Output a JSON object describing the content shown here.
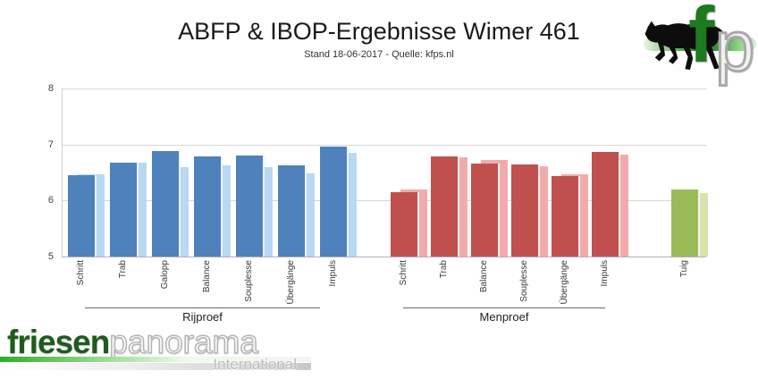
{
  "header": {
    "title": "ABFP & IBOP-Ergebnisse Wimer 461",
    "subtitle": "Stand 18-06-2017 - Quelle: kfps.nl"
  },
  "top_logo": {
    "letter_f": "f",
    "letter_p": "p"
  },
  "bottom_logo": {
    "word_green": "friesen",
    "word_silver": "panorama",
    "tagline": "International"
  },
  "chart_data": {
    "type": "bar",
    "title": "ABFP & IBOP-Ergebnisse Wimer 461",
    "subtitle": "Stand 18-06-2017 - Quelle: kfps.nl",
    "xlabel": "",
    "ylabel": "",
    "ylim": [
      5,
      8
    ],
    "yticks": [
      5,
      6,
      7,
      8
    ],
    "grid": true,
    "legend_position": "none",
    "bar_style": "each category has a front bar plus a lighter shadow bar offset to the right",
    "groups": [
      {
        "name": "Rijproef",
        "color_main": "#4f81bd",
        "color_shadow": "#b9d9f2",
        "categories": [
          "Schritt",
          "Trab",
          "Galopp",
          "Balance",
          "Souplesse",
          "Übergänge",
          "Impuls"
        ],
        "series": [
          {
            "name": "main",
            "values": [
              6.45,
              6.68,
              6.89,
              6.78,
              6.81,
              6.62,
              6.97
            ]
          },
          {
            "name": "shadow",
            "values": [
              6.47,
              6.67,
              6.59,
              6.62,
              6.6,
              6.48,
              6.85
            ]
          }
        ]
      },
      {
        "name": "Menproef",
        "color_main": "#c0504d",
        "color_shadow": "#f2abab",
        "categories": [
          "Schritt",
          "Trab",
          "Balance",
          "Souplesse",
          "Übergänge",
          "Impuls"
        ],
        "series": [
          {
            "name": "main",
            "values": [
              6.15,
              6.78,
              6.66,
              6.64,
              6.43,
              6.86
            ]
          },
          {
            "name": "shadow",
            "values": [
              6.2,
              6.77,
              6.72,
              6.61,
              6.47,
              6.82
            ]
          }
        ]
      },
      {
        "name": "",
        "color_main": "#9bbb59",
        "color_shadow": "#d7e4b0",
        "categories": [
          "Tuig"
        ],
        "series": [
          {
            "name": "main",
            "values": [
              6.2
            ]
          },
          {
            "name": "shadow",
            "values": [
              6.13
            ]
          }
        ]
      }
    ]
  }
}
